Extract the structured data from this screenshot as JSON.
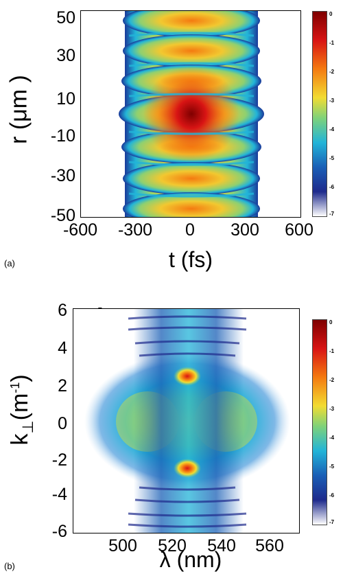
{
  "panels": [
    {
      "tag": "(a)",
      "y_label": "r (μm )",
      "x_label": "t (fs)",
      "y_ticks": [
        "50",
        "30",
        "10",
        "-10",
        "-30",
        "-50"
      ],
      "x_ticks": [
        "-600",
        "-300",
        "0",
        "300",
        "600"
      ],
      "colorbar_ticks": [
        "0",
        "-1",
        "-2",
        "-3",
        "-4",
        "-5",
        "-6",
        "-7"
      ]
    },
    {
      "tag": "(b)",
      "y_label_main": "k",
      "y_label_sub": "⊥",
      "y_label_tail": "(m",
      "y_label_sup": "-1",
      "y_label_end": ")",
      "x_label": "λ (nm)",
      "y_ticks": [
        "6",
        "4",
        "2",
        "0",
        "-2",
        "-4",
        "-6"
      ],
      "x_ticks": [
        "500",
        "520",
        "540",
        "560"
      ],
      "sci_base": "x10",
      "sci_exp": "5",
      "colorbar_ticks": [
        "0",
        "-1",
        "-2",
        "-3",
        "-4",
        "-5",
        "-6",
        "-7"
      ]
    }
  ],
  "colormap": [
    "#7f0000",
    "#d81414",
    "#f47a10",
    "#f2dc32",
    "#7ed27a",
    "#22b4d8",
    "#1a5fb6",
    "#1e2a8c",
    "#ffffff"
  ]
}
